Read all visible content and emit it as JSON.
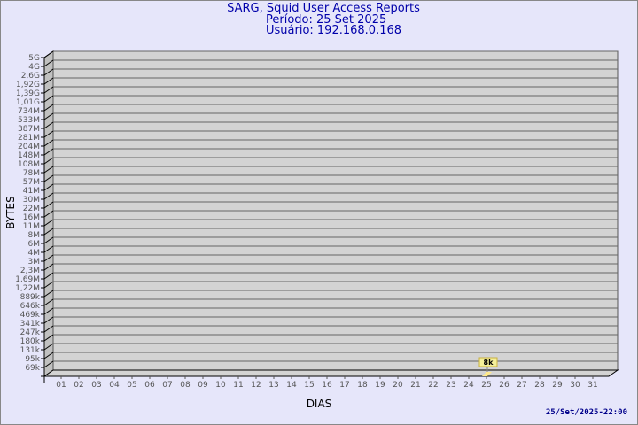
{
  "header": {
    "title": "SARG, Squid User Access Reports",
    "period": "Período: 25 Set 2025",
    "user": "Usuário: 192.168.0.168"
  },
  "timestamp": "25/Set/2025-22:00",
  "chart_data": {
    "type": "bar",
    "xlabel": "DIAS",
    "ylabel": "BYTES",
    "y_scale": "log",
    "y_tick_labels": [
      "5G",
      "4G",
      "2,6G",
      "1,92G",
      "1,39G",
      "1,01G",
      "734M",
      "533M",
      "387M",
      "281M",
      "204M",
      "148M",
      "108M",
      "78M",
      "57M",
      "41M",
      "30M",
      "22M",
      "16M",
      "11M",
      "8M",
      "6M",
      "4M",
      "3M",
      "2,3M",
      "1,69M",
      "1,22M",
      "889k",
      "646k",
      "469k",
      "341k",
      "247k",
      "180k",
      "131k",
      "95k",
      "69k"
    ],
    "categories": [
      "01",
      "02",
      "03",
      "04",
      "05",
      "06",
      "07",
      "08",
      "09",
      "10",
      "11",
      "12",
      "13",
      "14",
      "15",
      "16",
      "17",
      "18",
      "19",
      "20",
      "21",
      "22",
      "23",
      "24",
      "25",
      "26",
      "27",
      "28",
      "29",
      "30",
      "31"
    ],
    "values": [
      {
        "day": "25",
        "bytes": 8000,
        "label": "8k"
      }
    ],
    "grid": true,
    "colors": {
      "background": "#e6e6fa",
      "plot": "#d3d3d3",
      "bar": "#ffe98c",
      "label_bg": "#f5f09a",
      "text": "#0000aa"
    }
  }
}
